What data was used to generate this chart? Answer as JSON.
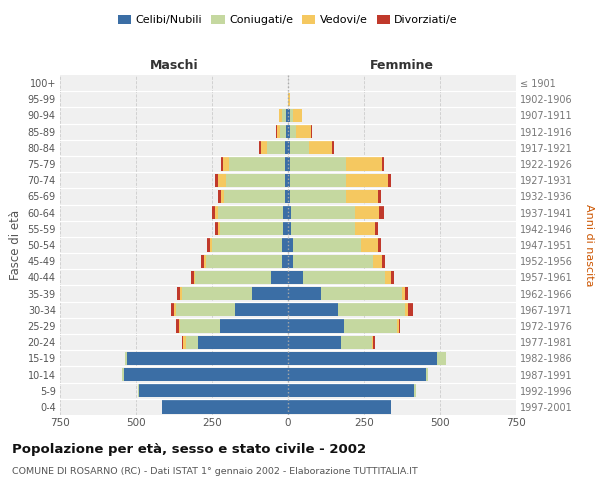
{
  "age_groups": [
    "0-4",
    "5-9",
    "10-14",
    "15-19",
    "20-24",
    "25-29",
    "30-34",
    "35-39",
    "40-44",
    "45-49",
    "50-54",
    "55-59",
    "60-64",
    "65-69",
    "70-74",
    "75-79",
    "80-84",
    "85-89",
    "90-94",
    "95-99",
    "100+"
  ],
  "birth_years": [
    "1997-2001",
    "1992-1996",
    "1987-1991",
    "1982-1986",
    "1977-1981",
    "1972-1976",
    "1967-1971",
    "1962-1966",
    "1957-1961",
    "1952-1956",
    "1947-1951",
    "1942-1946",
    "1937-1941",
    "1932-1936",
    "1927-1931",
    "1922-1926",
    "1917-1921",
    "1912-1916",
    "1907-1911",
    "1902-1906",
    "≤ 1901"
  ],
  "maschi_celibe": [
    415,
    490,
    540,
    530,
    295,
    225,
    175,
    120,
    55,
    20,
    20,
    15,
    15,
    10,
    10,
    10,
    10,
    5,
    5,
    0,
    0
  ],
  "maschi_coniugato": [
    0,
    5,
    5,
    5,
    40,
    130,
    195,
    230,
    250,
    250,
    230,
    210,
    215,
    200,
    195,
    185,
    60,
    20,
    15,
    0,
    0
  ],
  "maschi_vedovo": [
    0,
    0,
    0,
    0,
    10,
    5,
    5,
    5,
    5,
    5,
    5,
    5,
    10,
    10,
    25,
    20,
    20,
    10,
    10,
    0,
    0
  ],
  "maschi_divorziato": [
    0,
    0,
    0,
    0,
    5,
    10,
    10,
    10,
    10,
    10,
    10,
    10,
    10,
    10,
    10,
    5,
    5,
    5,
    0,
    0,
    0
  ],
  "femmine_celibe": [
    340,
    415,
    455,
    490,
    175,
    185,
    165,
    110,
    50,
    15,
    15,
    10,
    10,
    5,
    5,
    5,
    5,
    5,
    5,
    0,
    0
  ],
  "femmine_coniugato": [
    0,
    5,
    5,
    30,
    100,
    175,
    220,
    265,
    270,
    265,
    225,
    210,
    210,
    185,
    185,
    185,
    65,
    20,
    10,
    0,
    0
  ],
  "femmine_vedovo": [
    0,
    0,
    0,
    0,
    5,
    5,
    10,
    10,
    20,
    30,
    55,
    65,
    80,
    105,
    140,
    120,
    75,
    50,
    30,
    5,
    0
  ],
  "femmine_divorziato": [
    0,
    0,
    0,
    0,
    5,
    5,
    15,
    10,
    10,
    10,
    10,
    10,
    15,
    10,
    10,
    5,
    5,
    5,
    0,
    0,
    0
  ],
  "color_celibe": "#3B6EA5",
  "color_coniugato": "#C5D8A0",
  "color_vedovo": "#F5C860",
  "color_divorziato": "#C0392B",
  "title": "Popolazione per età, sesso e stato civile - 2002",
  "subtitle": "COMUNE DI ROSARNO (RC) - Dati ISTAT 1° gennaio 2002 - Elaborazione TUTTITALIA.IT",
  "label_maschi": "Maschi",
  "label_femmine": "Femmine",
  "ylabel_left": "Fasce di età",
  "ylabel_right": "Anni di nascita",
  "xlim": 750,
  "bg_color": "#ffffff",
  "plot_bg": "#f0f0f0"
}
